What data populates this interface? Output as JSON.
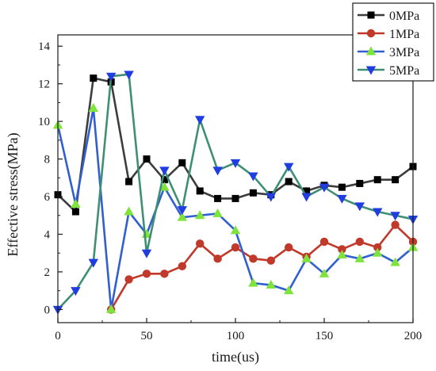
{
  "chart_data": {
    "type": "line",
    "title": "",
    "xlabel": "time(us)",
    "ylabel": "Effective stress(MPa)",
    "xlim": [
      0,
      200
    ],
    "ylim": [
      -0.7,
      14.6
    ],
    "xticks": [
      0,
      50,
      100,
      150,
      200
    ],
    "yticks": [
      0,
      2,
      4,
      6,
      8,
      10,
      12,
      14
    ],
    "grid": false,
    "legend_position": "top-right",
    "series": [
      {
        "name": "0MPa",
        "color": "#3d3d3d",
        "marker": "square",
        "marker_color": "#000000",
        "x": [
          0,
          10,
          20,
          30,
          40,
          50,
          60,
          70,
          80,
          90,
          100,
          110,
          120,
          130,
          140,
          150,
          160,
          170,
          180,
          190,
          200
        ],
        "values": [
          6.1,
          5.2,
          12.3,
          12.1,
          6.8,
          8.0,
          6.9,
          7.8,
          6.3,
          5.9,
          5.9,
          6.2,
          6.1,
          6.8,
          6.3,
          6.6,
          6.5,
          6.7,
          6.9,
          6.9,
          7.6
        ]
      },
      {
        "name": "1MPa",
        "color": "#c0392b",
        "marker": "circle",
        "marker_color": "#c0392b",
        "x": [
          30,
          40,
          50,
          60,
          70,
          80,
          90,
          100,
          110,
          120,
          130,
          140,
          150,
          160,
          170,
          180,
          190,
          200
        ],
        "values": [
          0.0,
          1.6,
          1.9,
          1.9,
          2.3,
          3.5,
          2.7,
          3.3,
          2.7,
          2.6,
          3.3,
          2.8,
          3.6,
          3.2,
          3.6,
          3.3,
          4.5,
          3.6
        ]
      },
      {
        "name": "3MPa",
        "color": "#2f5fd0",
        "marker": "triangle-up",
        "marker_color": "#7ee33a",
        "x": [
          0,
          10,
          20,
          30,
          40,
          50,
          60,
          70,
          80,
          90,
          100,
          110,
          120,
          130,
          140,
          150,
          160,
          170,
          180,
          190,
          200
        ],
        "values": [
          9.8,
          5.6,
          10.7,
          0.0,
          5.2,
          4.0,
          6.5,
          4.9,
          5.0,
          5.1,
          4.2,
          1.4,
          1.3,
          1.0,
          2.7,
          1.9,
          2.9,
          2.7,
          3.0,
          2.5,
          3.3
        ]
      },
      {
        "name": "5MPa",
        "color": "#3f8f76",
        "marker": "triangle-down",
        "marker_color": "#1f3de0",
        "x": [
          0,
          10,
          20,
          30,
          40,
          50,
          60,
          70,
          80,
          90,
          100,
          110,
          120,
          130,
          140,
          150,
          160,
          170,
          180,
          190,
          200
        ],
        "values": [
          0.0,
          1.0,
          2.5,
          12.4,
          12.5,
          3.0,
          7.4,
          5.3,
          10.1,
          7.4,
          7.8,
          7.1,
          6.0,
          7.6,
          6.0,
          6.5,
          5.9,
          5.5,
          5.2,
          5.0,
          4.8
        ]
      }
    ]
  }
}
